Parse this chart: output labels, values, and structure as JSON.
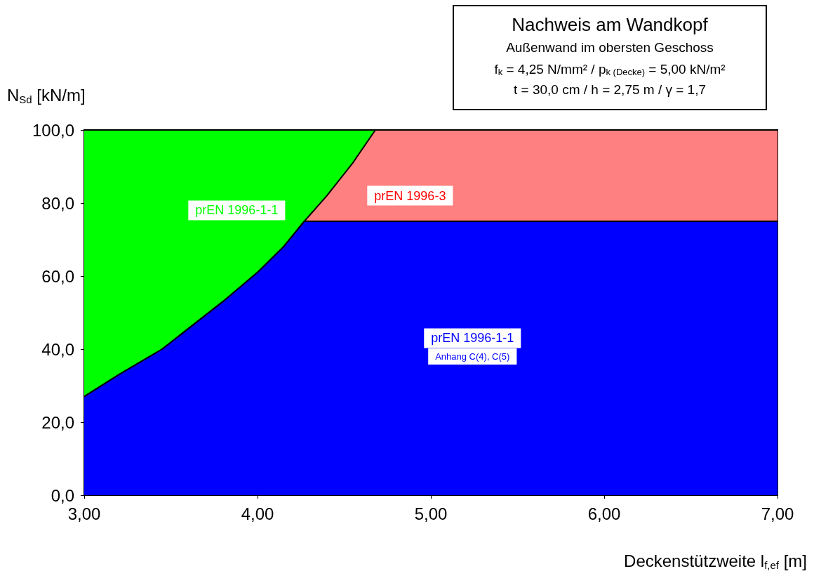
{
  "chart_data": {
    "type": "area",
    "title": "Nachweis am Wandkopf",
    "subtitle": "Außenwand im obersten Geschoss\nf$_{k}$ = 4,25 N/mm² / p$_{k (Decke)}$ = 5,00 kN/m²\nt = 30,0 cm / h = 2,75 m / γ = 1,7",
    "xlabel": "Deckenstützweite l$_{f,ef}$ [m]",
    "ylabel": "N$_{Sd}$ [kN/m]",
    "x": [
      3.0,
      3.2,
      3.45,
      3.8,
      4.0,
      4.15,
      4.27,
      4.4,
      4.55,
      4.68,
      7.0
    ],
    "series": [
      {
        "color": "#0000ff",
        "values": [
          27,
          33,
          40,
          53,
          61,
          68,
          75,
          75,
          75,
          75,
          75
        ]
      },
      {
        "color": "#ff8080",
        "values": [
          27,
          33,
          40,
          53,
          61,
          68,
          75,
          82,
          91,
          100,
          100
        ]
      },
      {
        "color": "#00ff00",
        "x": [
          3.0,
          4.68
        ],
        "values": [
          100,
          100
        ]
      }
    ],
    "xlim": [
      3,
      7
    ],
    "xticks": [
      {
        "value": 3,
        "label": "3,00"
      },
      {
        "value": 4,
        "label": "4,00"
      },
      {
        "value": 5,
        "label": "5,00"
      },
      {
        "value": 6,
        "label": "6,00"
      },
      {
        "value": 7,
        "label": "7,00"
      }
    ],
    "ylim": [
      0,
      100
    ],
    "yticks": [
      {
        "value": 0,
        "label": "0,0"
      },
      {
        "value": 20,
        "label": "20,0"
      },
      {
        "value": 40,
        "label": "40,0"
      },
      {
        "value": 60,
        "label": "60,0"
      },
      {
        "value": 80,
        "label": "80,0"
      },
      {
        "value": 100,
        "label": "100,0"
      }
    ],
    "annotations": [
      "prEN 1996-1-1",
      "prEN 1996-3",
      "prEN 1996-1-1",
      "Anhang C(4), C(5)"
    ]
  }
}
